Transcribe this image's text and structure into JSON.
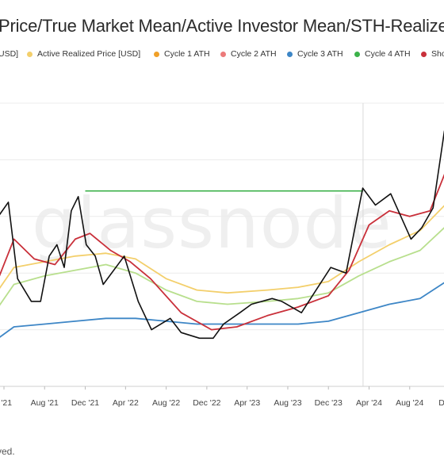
{
  "title": "Price/True Market Mean/Active Investor Mean/STH-Realized",
  "legend": [
    {
      "label": "USD]",
      "color": null
    },
    {
      "label": "Active Realized Price [USD]",
      "color": "#f3cf6b"
    },
    {
      "label": "Cycle 1 ATH",
      "color": "#f0a028"
    },
    {
      "label": "Cycle 2 ATH",
      "color": "#ec7a7a"
    },
    {
      "label": "Cycle 3 ATH",
      "color": "#3d86c6"
    },
    {
      "label": "Cycle 4 ATH",
      "color": "#3cb24a"
    },
    {
      "label": "Sho",
      "color": "#c9303a"
    }
  ],
  "watermark": "glassnode",
  "footer": "ved.",
  "chart_data": {
    "type": "line",
    "x_ticks": [
      "r '21",
      "Aug '21",
      "Dec '21",
      "Apr '22",
      "Aug '22",
      "Dec '22",
      "Apr '23",
      "Aug '23",
      "Dec '23",
      "Apr '24",
      "Aug '24",
      "Dec '2"
    ],
    "x_tick_dates": [
      "2021-04-01",
      "2021-08-01",
      "2021-12-01",
      "2022-04-01",
      "2022-08-01",
      "2022-12-01",
      "2023-04-01",
      "2023-08-01",
      "2023-12-01",
      "2024-04-01",
      "2024-08-01",
      "2024-12-01"
    ],
    "series": [
      {
        "color": "#111111",
        "x": [
          "2021-03-15",
          "2021-04-14",
          "2021-05-12",
          "2021-06-22",
          "2021-07-20",
          "2021-08-15",
          "2021-09-07",
          "2021-09-29",
          "2021-10-20",
          "2021-11-10",
          "2021-12-04",
          "2021-12-31",
          "2022-01-24",
          "2022-03-28",
          "2022-05-09",
          "2022-06-18",
          "2022-08-13",
          "2022-09-15",
          "2022-11-09",
          "2022-12-20",
          "2023-01-20",
          "2023-03-10",
          "2023-04-14",
          "2023-06-15",
          "2023-07-14",
          "2023-09-11",
          "2023-10-25",
          "2023-12-08",
          "2024-01-23",
          "2024-03-13",
          "2024-04-20",
          "2024-06-05",
          "2024-08-05",
          "2024-09-06",
          "2024-10-10",
          "2024-11-13",
          "2024-12-17",
          "2025-01-05"
        ],
        "y": [
          60,
          65,
          38,
          30,
          30,
          46,
          50,
          42,
          62,
          67,
          50,
          46,
          36,
          46,
          30,
          20,
          24,
          19,
          17,
          17,
          22,
          26,
          29,
          31,
          30,
          26,
          34,
          42,
          40,
          70,
          64,
          68,
          52,
          56,
          63,
          90,
          105,
          96
        ]
      },
      {
        "color": "#c9303a",
        "x": [
          "2021-03-15",
          "2021-05-01",
          "2021-07-01",
          "2021-09-01",
          "2021-11-01",
          "2021-12-15",
          "2022-02-15",
          "2022-04-15",
          "2022-06-15",
          "2022-09-15",
          "2022-12-15",
          "2023-03-01",
          "2023-06-01",
          "2023-09-01",
          "2023-12-01",
          "2024-02-01",
          "2024-04-01",
          "2024-06-01",
          "2024-08-01",
          "2024-10-01",
          "2024-12-01",
          "2025-01-05"
        ],
        "y": [
          38,
          52,
          45,
          43,
          52,
          54,
          48,
          44,
          38,
          26,
          20,
          21,
          25,
          28,
          32,
          41,
          57,
          62,
          60,
          62,
          80,
          88
        ]
      },
      {
        "color": "#b8df8d",
        "x": [
          "2021-03-15",
          "2021-05-01",
          "2021-08-01",
          "2021-11-01",
          "2022-02-01",
          "2022-05-01",
          "2022-08-01",
          "2022-11-01",
          "2023-02-01",
          "2023-06-01",
          "2023-09-01",
          "2023-12-01",
          "2024-03-01",
          "2024-06-01",
          "2024-09-01",
          "2024-12-01",
          "2025-01-05"
        ],
        "y": [
          28,
          36,
          39,
          41,
          43,
          40,
          34,
          30,
          29,
          30,
          31,
          33,
          39,
          44,
          48,
          58,
          64
        ]
      },
      {
        "color": "#f3cf6b",
        "x": [
          "2021-03-15",
          "2021-05-01",
          "2021-08-01",
          "2021-11-01",
          "2022-02-01",
          "2022-05-01",
          "2022-08-01",
          "2022-11-01",
          "2023-02-01",
          "2023-06-01",
          "2023-09-01",
          "2023-12-01",
          "2024-03-01",
          "2024-06-01",
          "2024-09-01",
          "2024-12-01",
          "2025-01-05"
        ],
        "y": [
          34,
          42,
          44,
          46,
          47,
          45,
          38,
          34,
          33,
          34,
          35,
          37,
          44,
          50,
          55,
          66,
          72
        ]
      },
      {
        "color": "#3d86c6",
        "x": [
          "2021-03-15",
          "2021-05-01",
          "2021-08-01",
          "2021-11-01",
          "2022-02-01",
          "2022-05-01",
          "2022-08-01",
          "2022-11-01",
          "2023-02-01",
          "2023-06-01",
          "2023-09-01",
          "2023-12-01",
          "2024-03-01",
          "2024-06-01",
          "2024-09-01",
          "2024-12-01",
          "2025-01-05"
        ],
        "y": [
          17,
          21,
          22,
          23,
          24,
          24,
          23,
          22,
          22,
          22,
          22,
          23,
          26,
          29,
          31,
          38,
          44
        ]
      },
      {
        "color": "#3cb24a",
        "x": [
          "2021-12-01",
          "2024-03-14"
        ],
        "y": [
          69,
          69
        ]
      }
    ]
  }
}
